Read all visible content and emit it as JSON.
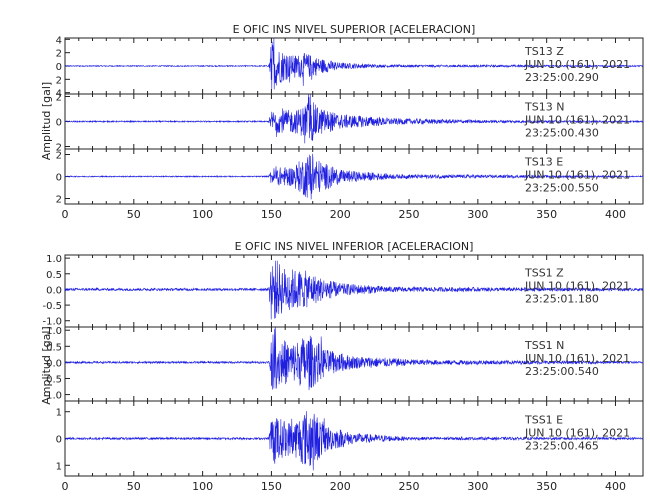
{
  "chart_data": [
    {
      "type": "line",
      "title": "E OFIC INS NIVEL SUPERIOR [ACELERACION]",
      "ylabel": "Amplitud [gal]",
      "xlim": [
        0,
        420
      ],
      "x_ticks": [
        0,
        50,
        100,
        150,
        200,
        250,
        300,
        350,
        400
      ],
      "panels": [
        {
          "name": "TS13 Z",
          "ylim": [
            -4.2,
            4.2
          ],
          "y_ticks": [
            -4,
            -2,
            0,
            2,
            4
          ],
          "y_tick_labels": [
            "4",
            "2",
            "0",
            "2",
            "4"
          ],
          "info": [
            "TS13   Z",
            "JUN 10 (161), 2021",
            "23:25:00.290"
          ],
          "signal": {
            "onset": 150,
            "peak_amp": 4.0,
            "envelope": [
              [
                0,
                0.08
              ],
              [
                148,
                0.08
              ],
              [
                150,
                4.0
              ],
              [
                155,
                2.8
              ],
              [
                165,
                1.6
              ],
              [
                175,
                2.0
              ],
              [
                185,
                1.2
              ],
              [
                200,
                0.5
              ],
              [
                230,
                0.2
              ],
              [
                420,
                0.1
              ]
            ]
          }
        },
        {
          "name": "TS13 N",
          "ylim": [
            -2.2,
            2.2
          ],
          "y_ticks": [
            -2,
            0,
            2
          ],
          "y_tick_labels": [
            "2",
            "0",
            "2"
          ],
          "info": [
            "TS13   N",
            "JUN 10 (161), 2021",
            "23:25:00.430"
          ],
          "signal": {
            "onset": 150,
            "peak_amp": 1.8,
            "envelope": [
              [
                0,
                0.05
              ],
              [
                148,
                0.05
              ],
              [
                150,
                0.9
              ],
              [
                160,
                0.9
              ],
              [
                170,
                1.0
              ],
              [
                178,
                1.8
              ],
              [
                185,
                1.1
              ],
              [
                200,
                0.6
              ],
              [
                240,
                0.25
              ],
              [
                300,
                0.12
              ],
              [
                420,
                0.05
              ]
            ]
          }
        },
        {
          "name": "TS13 E",
          "ylim": [
            -2.5,
            2.5
          ],
          "y_ticks": [
            -2,
            0,
            2
          ],
          "y_tick_labels": [
            "2",
            "0",
            "2"
          ],
          "info": [
            "TS13   E",
            "JUN 10 (161), 2021",
            "23:25:00.550"
          ],
          "signal": {
            "onset": 150,
            "peak_amp": 2.2,
            "envelope": [
              [
                0,
                0.05
              ],
              [
                148,
                0.05
              ],
              [
                150,
                0.8
              ],
              [
                165,
                0.9
              ],
              [
                178,
                2.2
              ],
              [
                186,
                1.4
              ],
              [
                200,
                0.6
              ],
              [
                240,
                0.2
              ],
              [
                420,
                0.05
              ]
            ]
          }
        }
      ]
    },
    {
      "type": "line",
      "title": "E OFIC INS NIVEL INFERIOR [ACELERACION]",
      "ylabel": "Amplitud [gal]",
      "xlim": [
        0,
        420
      ],
      "x_ticks": [
        0,
        50,
        100,
        150,
        200,
        250,
        300,
        350,
        400
      ],
      "panels": [
        {
          "name": "TSS1 Z",
          "ylim": [
            -1.2,
            1.1
          ],
          "y_ticks": [
            -1.0,
            -0.5,
            0.0,
            0.5,
            1.0
          ],
          "y_tick_labels": [
            "-1.0",
            "-0.5",
            "0.0",
            "0.5",
            "1.0"
          ],
          "info": [
            "TSS1   Z",
            "JUN 10 (161), 2021",
            "23:25:01.180"
          ],
          "signal": {
            "onset": 150,
            "peak_amp": 1.1,
            "envelope": [
              [
                0,
                0.04
              ],
              [
                148,
                0.04
              ],
              [
                150,
                1.1
              ],
              [
                160,
                0.7
              ],
              [
                175,
                0.6
              ],
              [
                185,
                0.4
              ],
              [
                200,
                0.2
              ],
              [
                240,
                0.08
              ],
              [
                420,
                0.04
              ]
            ]
          }
        },
        {
          "name": "TSS1 N",
          "ylim": [
            -1.2,
            1.1
          ],
          "y_ticks": [
            -1.0,
            -0.5,
            0.0,
            0.5,
            1.0
          ],
          "y_tick_labels": [
            "1.0",
            "0.5",
            "0.0",
            "0.5",
            "1.0"
          ],
          "info": [
            "TSS1   N",
            "JUN 10 (161), 2021",
            "23:25:00.540"
          ],
          "signal": {
            "onset": 150,
            "peak_amp": 0.9,
            "envelope": [
              [
                0,
                0.03
              ],
              [
                148,
                0.03
              ],
              [
                150,
                0.9
              ],
              [
                165,
                0.6
              ],
              [
                177,
                0.9
              ],
              [
                190,
                0.4
              ],
              [
                210,
                0.2
              ],
              [
                260,
                0.08
              ],
              [
                420,
                0.03
              ]
            ]
          }
        },
        {
          "name": "TSS1 E",
          "ylim": [
            -1.4,
            1.4
          ],
          "y_ticks": [
            -1,
            0,
            1
          ],
          "y_tick_labels": [
            "1",
            "0",
            "1"
          ],
          "info": [
            "TSS1   E",
            "JUN 10 (161), 2021",
            "23:25:00.465"
          ],
          "signal": {
            "onset": 150,
            "peak_amp": 1.2,
            "envelope": [
              [
                0,
                0.04
              ],
              [
                148,
                0.04
              ],
              [
                150,
                0.9
              ],
              [
                165,
                0.6
              ],
              [
                177,
                1.2
              ],
              [
                190,
                0.5
              ],
              [
                210,
                0.2
              ],
              [
                250,
                0.06
              ],
              [
                420,
                0.04
              ]
            ]
          }
        }
      ]
    }
  ],
  "colors": {
    "trace": "#1f1fe0",
    "axis": "#222222",
    "info_text": "#333333"
  }
}
